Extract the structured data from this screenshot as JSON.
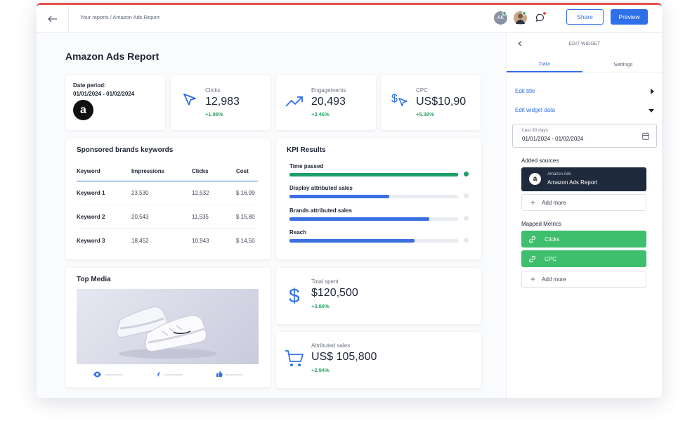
{
  "topbar": {
    "breadcrumb": "Your reports / Amazon Ads Report",
    "avatar_initials": "AK",
    "share_label": "Share",
    "preview_label": "Preview"
  },
  "page": {
    "title": "Amazon Ads Report"
  },
  "date_card": {
    "label": "Date period:",
    "value": "01/01/2024 - 01/02/2024",
    "logo": "a"
  },
  "kpis": [
    {
      "label": "Clicks",
      "value": "12,983",
      "change": "+1.98%",
      "icon": "cursor-icon"
    },
    {
      "label": "Engagements",
      "value": "20,493",
      "change": "+3.46%",
      "icon": "trend-up-icon"
    },
    {
      "label": "CPC",
      "value": "US$10,90",
      "change": "+5.38%",
      "icon": "dollar-cursor-icon"
    }
  ],
  "keywords": {
    "title": "Sponsored brands keywords",
    "columns": [
      "Keyword",
      "Impressions",
      "Clicks",
      "Cost"
    ],
    "rows": [
      [
        "Keyword 1",
        "23,530",
        "12,532",
        "$ 16,99"
      ],
      [
        "Keyword 2",
        "20,543",
        "11,535",
        "$ 15,80"
      ],
      [
        "Keyword 3",
        "18,452",
        "10,943",
        "$ 14,50"
      ]
    ]
  },
  "kpi_results": {
    "title": "KPI Results",
    "items": [
      {
        "label": "Time passed",
        "progress": 1.0,
        "color": "#1e9e68",
        "done": true
      },
      {
        "label": "Display attributed sales",
        "progress": 0.59,
        "color": "#3a6fe0",
        "done": false
      },
      {
        "label": "Brands attributed sales",
        "progress": 0.83,
        "color": "#3a6fe0",
        "done": false
      },
      {
        "label": "Reach",
        "progress": 0.74,
        "color": "#3a6fe0",
        "done": false
      }
    ]
  },
  "top_media": {
    "title": "Top Media",
    "actions": [
      "eye-icon",
      "send-icon",
      "thumbs-up-icon"
    ]
  },
  "total_spent": {
    "label": "Total spent",
    "value": "$120,500",
    "change": "+3.89%"
  },
  "attributed_sales": {
    "label": "Attributed sales",
    "value": "US$ 105,800",
    "change": "+2.94%"
  },
  "sidebar": {
    "header": "EDIT WIDGET",
    "tabs": [
      "Data",
      "Settings"
    ],
    "active_tab": "Data",
    "edit_title": "Edit title",
    "edit_data": "Edit widget data",
    "date_range_label": "Last 30 days",
    "date_range_value": "01/01/2024 - 01/02/2024",
    "added_sources_label": "Added sources",
    "source_type": "Amazon Ads",
    "source_name": "Amazon Ads Report",
    "add_more": "Add more",
    "mapped_metrics_label": "Mapped Metrics",
    "metrics": [
      "Clicks",
      "CPC"
    ]
  },
  "colors": {
    "accent": "#2f6fe8",
    "positive": "#2ea56a",
    "metric_green": "#3fbe6d",
    "source_dark": "#1f2a3c"
  }
}
